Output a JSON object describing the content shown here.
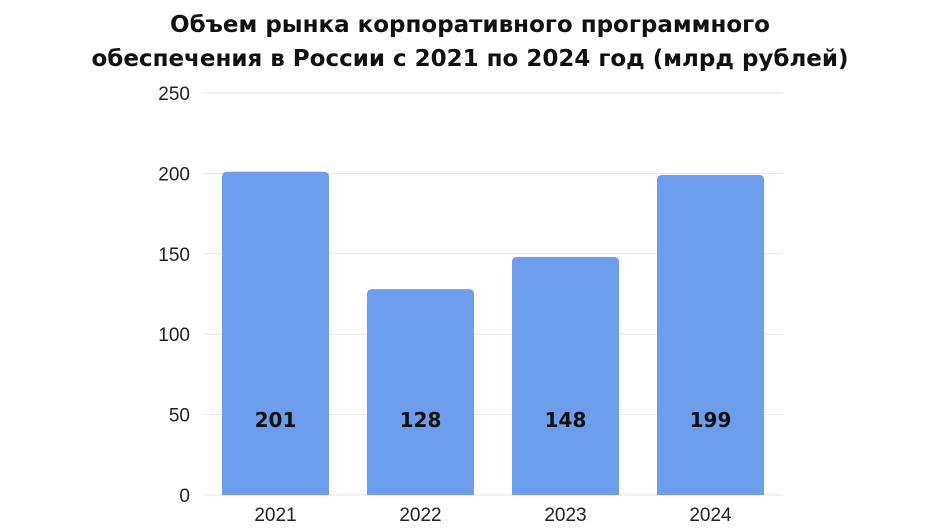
{
  "chart_data": {
    "type": "bar",
    "title_lines": [
      "Объем рынка корпоративного программного",
      "обеспечения в России с 2021 по 2024 год (млрд рублей)"
    ],
    "categories": [
      "2021",
      "2022",
      "2023",
      "2024"
    ],
    "values": [
      201,
      128,
      148,
      199
    ],
    "data_labels": [
      "201",
      "128",
      "148",
      "199"
    ],
    "ylim": [
      0,
      250
    ],
    "yticks": [
      0,
      50,
      100,
      150,
      200,
      250
    ],
    "xlabel": "",
    "ylabel": "",
    "grid": true,
    "legend": "none",
    "bar_color": "#6d9eeb",
    "grid_color": "#e6e6e6"
  }
}
